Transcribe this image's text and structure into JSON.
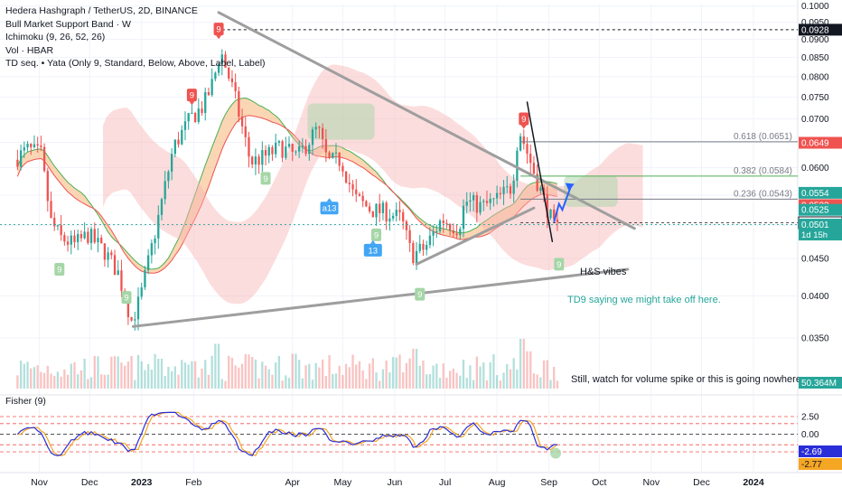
{
  "legend": {
    "title": "Hedera Hashgraph / TetherUS, 2D, BINANCE",
    "line1": "Bull Market Support Band · W",
    "line2": "Ichimoku (9, 26, 52, 26)",
    "line3": "Vol · HBAR",
    "line4": "TD seq. • Yata (Only 9, Standard, Below, Above, Label, Label)"
  },
  "fisher_label": "Fisher (9)",
  "annotations": {
    "hs": "H&S vibes",
    "td9": "TD9 saying we might take off here.",
    "volume_note": "Still, watch for volume spike or this is going nowhere"
  },
  "colors": {
    "up": "#26a69a",
    "down": "#ef5350",
    "trendline": "#9e9e9e",
    "fib_line": "#787b86",
    "fisher": "#2a2ed8",
    "fisher_trigger": "#f5a623",
    "support_band_fill": "#f7a35c",
    "cloud_green": "#a5d6a7",
    "cloud_red": "#f8b4b4"
  },
  "chart_data": {
    "type": "candlestick",
    "symbol": "HBARUSDT",
    "interval": "2D",
    "exchange": "BINANCE",
    "y_axis": {
      "scale": "log",
      "ylim": [
        0.0325,
        0.1005
      ],
      "tick_labels": [
        "0.1000",
        "0.0950",
        "0.0900",
        "0.0850",
        "0.0800",
        "0.0750",
        "0.0700",
        "0.0650",
        "0.0600",
        "0.0550",
        "0.0500",
        "0.0450",
        "0.0400",
        "0.0350"
      ]
    },
    "x_axis": {
      "ticks": [
        {
          "label": "Nov",
          "date": "2022-11-01"
        },
        {
          "label": "Dec",
          "date": "2022-12-01"
        },
        {
          "label": "2023",
          "date": "2023-01-01",
          "bold": true
        },
        {
          "label": "Feb",
          "date": "2023-02-01"
        },
        {
          "label": "Apr",
          "date": "2023-04-01"
        },
        {
          "label": "May",
          "date": "2023-05-01"
        },
        {
          "label": "Jun",
          "date": "2023-06-01"
        },
        {
          "label": "Jul",
          "date": "2023-07-01"
        },
        {
          "label": "Aug",
          "date": "2023-08-01"
        },
        {
          "label": "Sep",
          "date": "2023-09-01"
        },
        {
          "label": "Oct",
          "date": "2023-10-01"
        },
        {
          "label": "Nov",
          "date": "2023-11-01"
        },
        {
          "label": "Dec",
          "date": "2023-12-01"
        },
        {
          "label": "2024",
          "date": "2024-01-01",
          "bold": true
        }
      ]
    },
    "price_path": [
      {
        "date": "2022-10-18",
        "price": 0.0615
      },
      {
        "date": "2022-10-26",
        "price": 0.0635
      },
      {
        "date": "2022-11-03",
        "price": 0.0625
      },
      {
        "date": "2022-11-09",
        "price": 0.0505
      },
      {
        "date": "2022-11-15",
        "price": 0.048
      },
      {
        "date": "2022-11-23",
        "price": 0.047
      },
      {
        "date": "2022-12-01",
        "price": 0.0485
      },
      {
        "date": "2022-12-11",
        "price": 0.046
      },
      {
        "date": "2022-12-19",
        "price": 0.043
      },
      {
        "date": "2022-12-27",
        "price": 0.037
      },
      {
        "date": "2023-01-01",
        "price": 0.0395
      },
      {
        "date": "2023-01-11",
        "price": 0.05
      },
      {
        "date": "2023-01-21",
        "price": 0.064
      },
      {
        "date": "2023-01-31",
        "price": 0.07
      },
      {
        "date": "2023-02-08",
        "price": 0.073
      },
      {
        "date": "2023-02-14",
        "price": 0.079
      },
      {
        "date": "2023-02-18",
        "price": 0.087
      },
      {
        "date": "2023-02-26",
        "price": 0.076
      },
      {
        "date": "2023-03-08",
        "price": 0.061
      },
      {
        "date": "2023-03-16",
        "price": 0.062
      },
      {
        "date": "2023-03-26",
        "price": 0.064
      },
      {
        "date": "2023-04-05",
        "price": 0.062
      },
      {
        "date": "2023-04-17",
        "price": 0.068
      },
      {
        "date": "2023-04-23",
        "price": 0.061
      },
      {
        "date": "2023-05-01",
        "price": 0.0615
      },
      {
        "date": "2023-05-09",
        "price": 0.0545
      },
      {
        "date": "2023-05-19",
        "price": 0.0525
      },
      {
        "date": "2023-05-29",
        "price": 0.052
      },
      {
        "date": "2023-06-06",
        "price": 0.051
      },
      {
        "date": "2023-06-12",
        "price": 0.0455
      },
      {
        "date": "2023-06-20",
        "price": 0.0465
      },
      {
        "date": "2023-06-30",
        "price": 0.051
      },
      {
        "date": "2023-07-10",
        "price": 0.0495
      },
      {
        "date": "2023-07-14",
        "price": 0.054
      },
      {
        "date": "2023-07-24",
        "price": 0.053
      },
      {
        "date": "2023-08-01",
        "price": 0.054
      },
      {
        "date": "2023-08-11",
        "price": 0.0565
      },
      {
        "date": "2023-08-15",
        "price": 0.068
      },
      {
        "date": "2023-08-21",
        "price": 0.062
      },
      {
        "date": "2023-08-27",
        "price": 0.0565
      },
      {
        "date": "2023-09-02",
        "price": 0.052
      },
      {
        "date": "2023-09-05",
        "price": 0.0495
      }
    ],
    "price_labels": [
      {
        "text": "0.0928",
        "value": 0.0928,
        "bg": "#131722",
        "fg": "#ffffff"
      },
      {
        "text": "0.0649",
        "value": 0.0649,
        "bg": "#ef5350",
        "fg": "#ffffff"
      },
      {
        "text": "0.0554",
        "value": 0.0554,
        "bg": "#26a69a",
        "fg": "#ffffff"
      },
      {
        "text": "0.0533",
        "value": 0.0533,
        "bg": "#ef5350",
        "fg": "#ffffff"
      },
      {
        "text": "0.0525",
        "value": 0.0525,
        "bg": "#26a69a",
        "fg": "#ffffff"
      },
      {
        "text": "0.0504",
        "value": 0.0504,
        "bg": "#ffffff",
        "fg": "#131722",
        "border": "#131722"
      },
      {
        "text": "0.0501",
        "value": 0.0501,
        "bg": "#26a69a",
        "fg": "#ffffff",
        "sub": "1d 15h"
      }
    ],
    "volume_label": "50.364M",
    "fib_levels": [
      {
        "label": "0.618 (0.0651)",
        "value": 0.0651
      },
      {
        "label": "0.382 (0.0584)",
        "value": 0.0584
      },
      {
        "label": "0.236 (0.0543)",
        "value": 0.0543
      }
    ],
    "trendlines": [
      {
        "name": "upper-wedge",
        "from": {
          "date": "2023-02-16",
          "price": 0.098
        },
        "to": {
          "date": "2023-10-22",
          "price": 0.0495
        }
      },
      {
        "name": "lower-wedge",
        "from": {
          "date": "2022-12-27",
          "price": 0.0363
        },
        "to": {
          "date": "2023-10-18",
          "price": 0.0435
        }
      },
      {
        "name": "neckline",
        "from": {
          "date": "2023-06-14",
          "price": 0.0442
        },
        "to": {
          "date": "2023-08-23",
          "price": 0.0528
        }
      },
      {
        "name": "breakdown-line",
        "from": {
          "date": "2023-08-19",
          "price": 0.0738
        },
        "to": {
          "date": "2023-09-03",
          "price": 0.0475
        }
      }
    ],
    "td_markers": [
      {
        "text": "9",
        "type": "sell",
        "date": "2023-02-16",
        "price": 0.093
      },
      {
        "text": "9",
        "type": "sell",
        "date": "2023-01-31",
        "price": 0.0755
      },
      {
        "text": "9",
        "type": "sell",
        "date": "2023-08-17",
        "price": 0.07
      },
      {
        "text": "9",
        "type": "buy",
        "date": "2022-11-13",
        "price": 0.0435
      },
      {
        "text": "9",
        "type": "buy",
        "date": "2022-12-23",
        "price": 0.0398
      },
      {
        "text": "9",
        "type": "buy",
        "date": "2023-03-16",
        "price": 0.058
      },
      {
        "text": "9",
        "type": "buy",
        "date": "2023-05-21",
        "price": 0.0485
      },
      {
        "text": "9",
        "type": "buy",
        "date": "2023-06-16",
        "price": 0.0402
      },
      {
        "text": "9",
        "type": "buy",
        "date": "2023-09-07",
        "price": 0.0442
      },
      {
        "text": "a13",
        "type": "count",
        "date": "2023-04-23",
        "price": 0.0528
      },
      {
        "text": "13",
        "type": "count",
        "date": "2023-05-19",
        "price": 0.0462
      }
    ],
    "fisher": {
      "label": "Fisher (9)",
      "levels": [
        "2.50",
        "0.00",
        "-2.50"
      ],
      "last_values": [
        {
          "text": "-2.69",
          "series": "fisher"
        },
        {
          "text": "-2.77",
          "series": "trigger"
        }
      ]
    }
  }
}
